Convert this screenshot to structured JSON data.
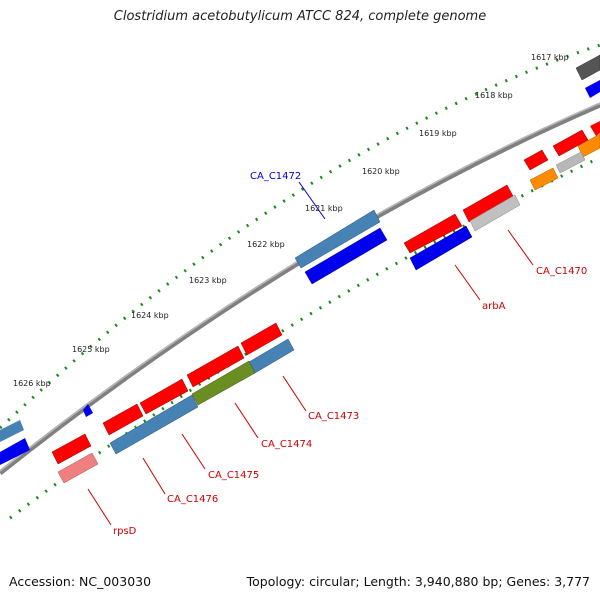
{
  "title": "Clostridium acetobutylicum ATCC 824, complete genome",
  "footer": {
    "accession": "Accession: NC_003030",
    "topology": "Topology: circular; Length: 3,940,880 bp; Genes: 3,777"
  },
  "colors": {
    "forward_gene": "#ff0000",
    "reverse_gene": "#0000ee",
    "blue_gene": "#4682b4",
    "olive_gene": "#6b8e23",
    "pink_gene": "#f08080",
    "gray_gene": "#b8b8b8",
    "orange_gene": "#ff8c00",
    "dark_gene": "#555555",
    "tick_color": "#1a8a1a",
    "backbone": "#808080",
    "forward_label": "#cc0000",
    "reverse_label": "#0000cc"
  },
  "kbp_labels": [
    "1617 kbp",
    "1618 kbp",
    "1619 kbp",
    "1620 kbp",
    "1621 kbp",
    "1622 kbp",
    "1623 kbp",
    "1624 kbp",
    "1625 kbp",
    "1626 kbp"
  ],
  "gene_labels": {
    "ca_c1472": "CA_C1472",
    "ca_c1470": "CA_C1470",
    "arba": "arbA",
    "ca_c1473": "CA_C1473",
    "ca_c1474": "CA_C1474",
    "ca_c1475": "CA_C1475",
    "ca_c1476": "CA_C1476",
    "rpsd": "rpsD"
  }
}
